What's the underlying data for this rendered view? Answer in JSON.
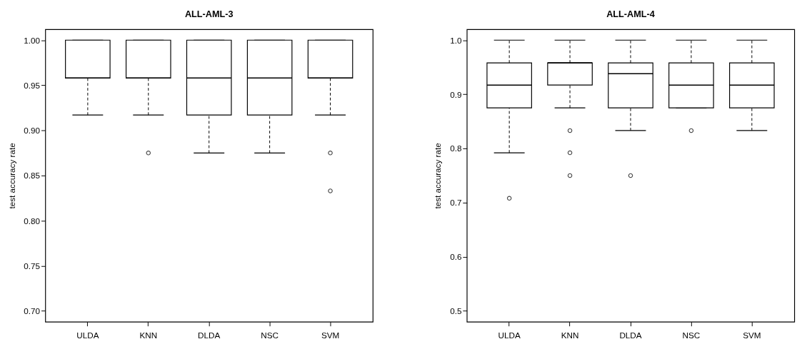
{
  "chart_data": [
    {
      "type": "box",
      "title": "ALL-AML-3",
      "ylabel": "test accuracy rate",
      "categories": [
        "ULDA",
        "KNN",
        "DLDA",
        "NSC",
        "SVM"
      ],
      "boxes": [
        {
          "low": 0.917,
          "q1": 0.958,
          "median": 0.958,
          "q3": 1.0,
          "high": 1.0
        },
        {
          "low": 0.917,
          "q1": 0.958,
          "median": 0.958,
          "q3": 1.0,
          "high": 1.0,
          "outliers": [
            0.875
          ]
        },
        {
          "low": 0.875,
          "q1": 0.917,
          "median": 0.958,
          "q3": 1.0,
          "high": 1.0
        },
        {
          "low": 0.875,
          "q1": 0.917,
          "median": 0.958,
          "q3": 1.0,
          "high": 1.0
        },
        {
          "low": 0.917,
          "q1": 0.958,
          "median": 0.958,
          "q3": 1.0,
          "high": 1.0,
          "outliers": [
            0.875,
            0.833
          ]
        }
      ],
      "ylim": [
        0.688,
        1.012
      ],
      "yticks": [
        {
          "value": 0.7,
          "label": "0.70"
        },
        {
          "value": 0.75,
          "label": "0.75"
        },
        {
          "value": 0.8,
          "label": "0.80"
        },
        {
          "value": 0.85,
          "label": "0.85"
        },
        {
          "value": 0.9,
          "label": "0.90"
        },
        {
          "value": 0.95,
          "label": "0.95"
        },
        {
          "value": 1.0,
          "label": "1.00"
        }
      ],
      "grid": false
    },
    {
      "type": "box",
      "title": "ALL-AML-4",
      "ylabel": "test accuracy rate",
      "categories": [
        "ULDA",
        "KNN",
        "DLDA",
        "NSC",
        "SVM"
      ],
      "boxes": [
        {
          "low": 0.792,
          "q1": 0.875,
          "median": 0.917,
          "q3": 0.958,
          "high": 1.0,
          "outliers": [
            0.708
          ]
        },
        {
          "low": 0.875,
          "q1": 0.917,
          "median": 0.958,
          "q3": 0.958,
          "high": 1.0,
          "outliers": [
            0.833,
            0.792,
            0.75
          ]
        },
        {
          "low": 0.833,
          "q1": 0.875,
          "median": 0.938,
          "q3": 0.958,
          "high": 1.0,
          "outliers": [
            0.75
          ]
        },
        {
          "low": 0.875,
          "q1": 0.875,
          "median": 0.917,
          "q3": 0.958,
          "high": 1.0,
          "outliers": [
            0.833
          ]
        },
        {
          "low": 0.833,
          "q1": 0.875,
          "median": 0.917,
          "q3": 0.958,
          "high": 1.0
        }
      ],
      "ylim": [
        0.48,
        1.02
      ],
      "yticks": [
        {
          "value": 0.5,
          "label": "0.5"
        },
        {
          "value": 0.6,
          "label": "0.6"
        },
        {
          "value": 0.7,
          "label": "0.7"
        },
        {
          "value": 0.8,
          "label": "0.8"
        },
        {
          "value": 0.9,
          "label": "0.9"
        },
        {
          "value": 1.0,
          "label": "1.0"
        }
      ],
      "grid": false
    }
  ]
}
